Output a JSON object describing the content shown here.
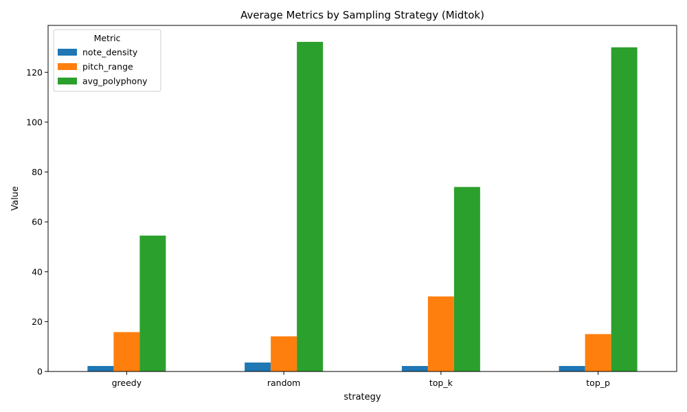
{
  "chart_data": {
    "type": "bar",
    "title": "Average Metrics by Sampling Strategy (Midtok)",
    "xlabel": "strategy",
    "ylabel": "Value",
    "categories": [
      "greedy",
      "random",
      "top_k",
      "top_p"
    ],
    "ylim": [
      0,
      138.8
    ],
    "yticks": [
      0,
      20,
      40,
      60,
      80,
      100,
      120
    ],
    "grid": false,
    "legend": {
      "title": "Metric",
      "position": "top-left"
    },
    "series": [
      {
        "name": "note_density",
        "color": "#1f77b4",
        "values": [
          2.2,
          3.6,
          2.2,
          2.2
        ]
      },
      {
        "name": "pitch_range",
        "color": "#ff7f0e",
        "values": [
          15.8,
          14.1,
          30.1,
          15.0
        ]
      },
      {
        "name": "avg_polyphony",
        "color": "#2ca02c",
        "values": [
          54.5,
          132.2,
          74.0,
          130.0
        ]
      }
    ]
  }
}
